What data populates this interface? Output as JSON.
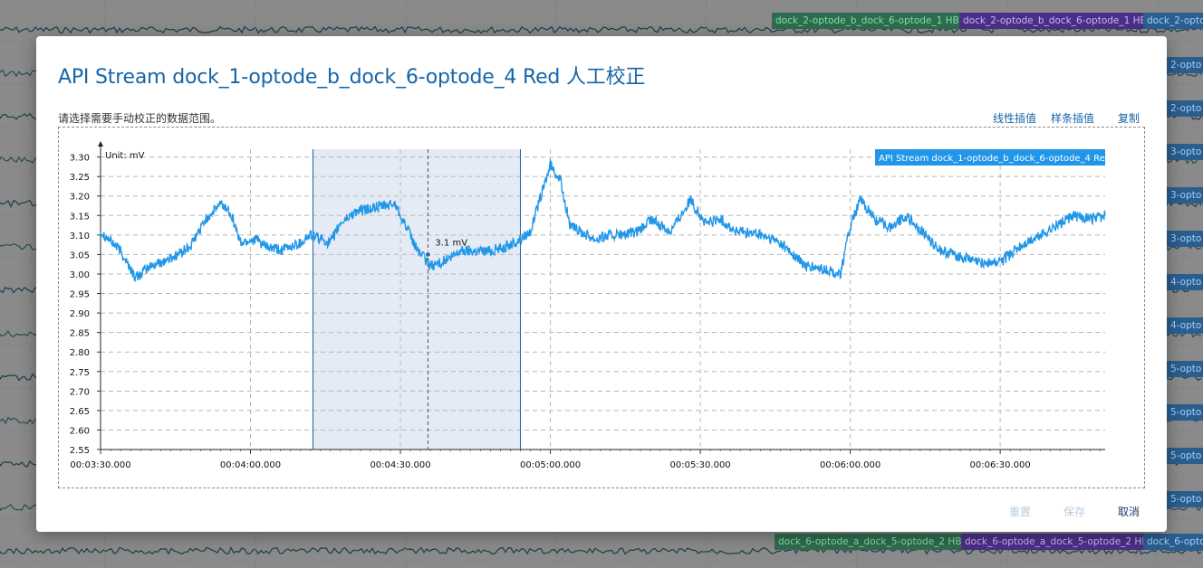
{
  "background": {
    "top_tags": [
      {
        "label": "dock_2-optode_b_dock_6-optode_1 HBT",
        "color": "green"
      },
      {
        "label": "dock_2-optode_b_dock_6-optode_1 HB",
        "color": "purple"
      },
      {
        "label": "dock_2-opto",
        "color": "blue"
      }
    ],
    "side_tags": [
      "2-opto",
      "2-opto",
      "3-opto",
      "3-opto",
      "3-opto",
      "4-opto",
      "4-opto",
      "5-opto",
      "5-opto",
      "5-opto",
      "5-opto",
      "6-opto"
    ],
    "bottom_tags": [
      {
        "label": "dock_6-optode_a_dock_5-optode_2 HBT",
        "color": "green"
      },
      {
        "label": "dock_6-optode_a_dock_5-optode_2 HB",
        "color": "purple"
      },
      {
        "label": "dock_6-opto",
        "color": "blue"
      }
    ]
  },
  "dialog": {
    "title": "API Stream dock_1-optode_b_dock_6-optode_4 Red 人工校正",
    "instruction": "请选择需要手动校正的数据范围。",
    "toolbar": {
      "linear": "线性插值",
      "spline": "样条插值",
      "copy": "复制"
    },
    "footer": {
      "reset": "重置",
      "save": "保存",
      "cancel": "取消"
    }
  },
  "chart_data": {
    "type": "line",
    "unit_label": "Unit: mV",
    "legend": "API Stream dock_1-optode_b_dock_6-optode_4 Red",
    "series_color": "#2196e8",
    "y_ticks": [
      "2.55",
      "2.60",
      "2.65",
      "2.70",
      "2.75",
      "2.80",
      "2.85",
      "2.90",
      "2.95",
      "3.00",
      "3.05",
      "3.10",
      "3.15",
      "3.20",
      "3.25",
      "3.30"
    ],
    "ylim": [
      2.55,
      3.32
    ],
    "x_ticks": [
      "00:03:30.000",
      "00:04:00.000",
      "00:04:30.000",
      "00:05:00.000",
      "00:05:30.000",
      "00:06:00.000",
      "00:06:30.000"
    ],
    "xlim_seconds": [
      210,
      411
    ],
    "selection_seconds": [
      252.5,
      294
    ],
    "cursor": {
      "t_seconds": 275.5,
      "value": 3.05,
      "label": "3.1 mV"
    },
    "series": [
      {
        "name": "API Stream dock_1-optode_b_dock_6-optode_4 Red",
        "t_seconds": [
          210,
          214,
          217,
          220,
          224,
          228,
          231,
          234,
          236,
          238,
          241,
          243,
          246,
          250,
          252,
          256,
          258,
          261,
          265,
          269,
          273,
          276,
          278,
          280,
          282,
          285,
          288,
          291,
          293,
          296,
          300,
          302,
          304,
          306,
          309,
          312,
          315,
          318,
          320,
          324,
          328,
          331,
          334,
          337,
          342,
          346,
          351,
          355,
          358,
          360,
          362,
          365,
          368,
          371,
          375,
          378,
          381,
          383,
          386,
          390,
          394,
          398,
          402,
          405,
          408,
          411
        ],
        "values": [
          3.11,
          3.06,
          2.99,
          3.02,
          3.04,
          3.07,
          3.14,
          3.18,
          3.16,
          3.08,
          3.09,
          3.07,
          3.06,
          3.08,
          3.1,
          3.08,
          3.13,
          3.16,
          3.17,
          3.18,
          3.07,
          3.02,
          3.03,
          3.04,
          3.06,
          3.06,
          3.06,
          3.07,
          3.08,
          3.11,
          3.28,
          3.24,
          3.12,
          3.11,
          3.09,
          3.1,
          3.1,
          3.11,
          3.14,
          3.11,
          3.19,
          3.13,
          3.14,
          3.11,
          3.1,
          3.08,
          3.02,
          3.01,
          3.0,
          3.12,
          3.19,
          3.14,
          3.12,
          3.15,
          3.1,
          3.06,
          3.05,
          3.04,
          3.03,
          3.03,
          3.07,
          3.1,
          3.13,
          3.15,
          3.14,
          3.15
        ]
      }
    ]
  }
}
